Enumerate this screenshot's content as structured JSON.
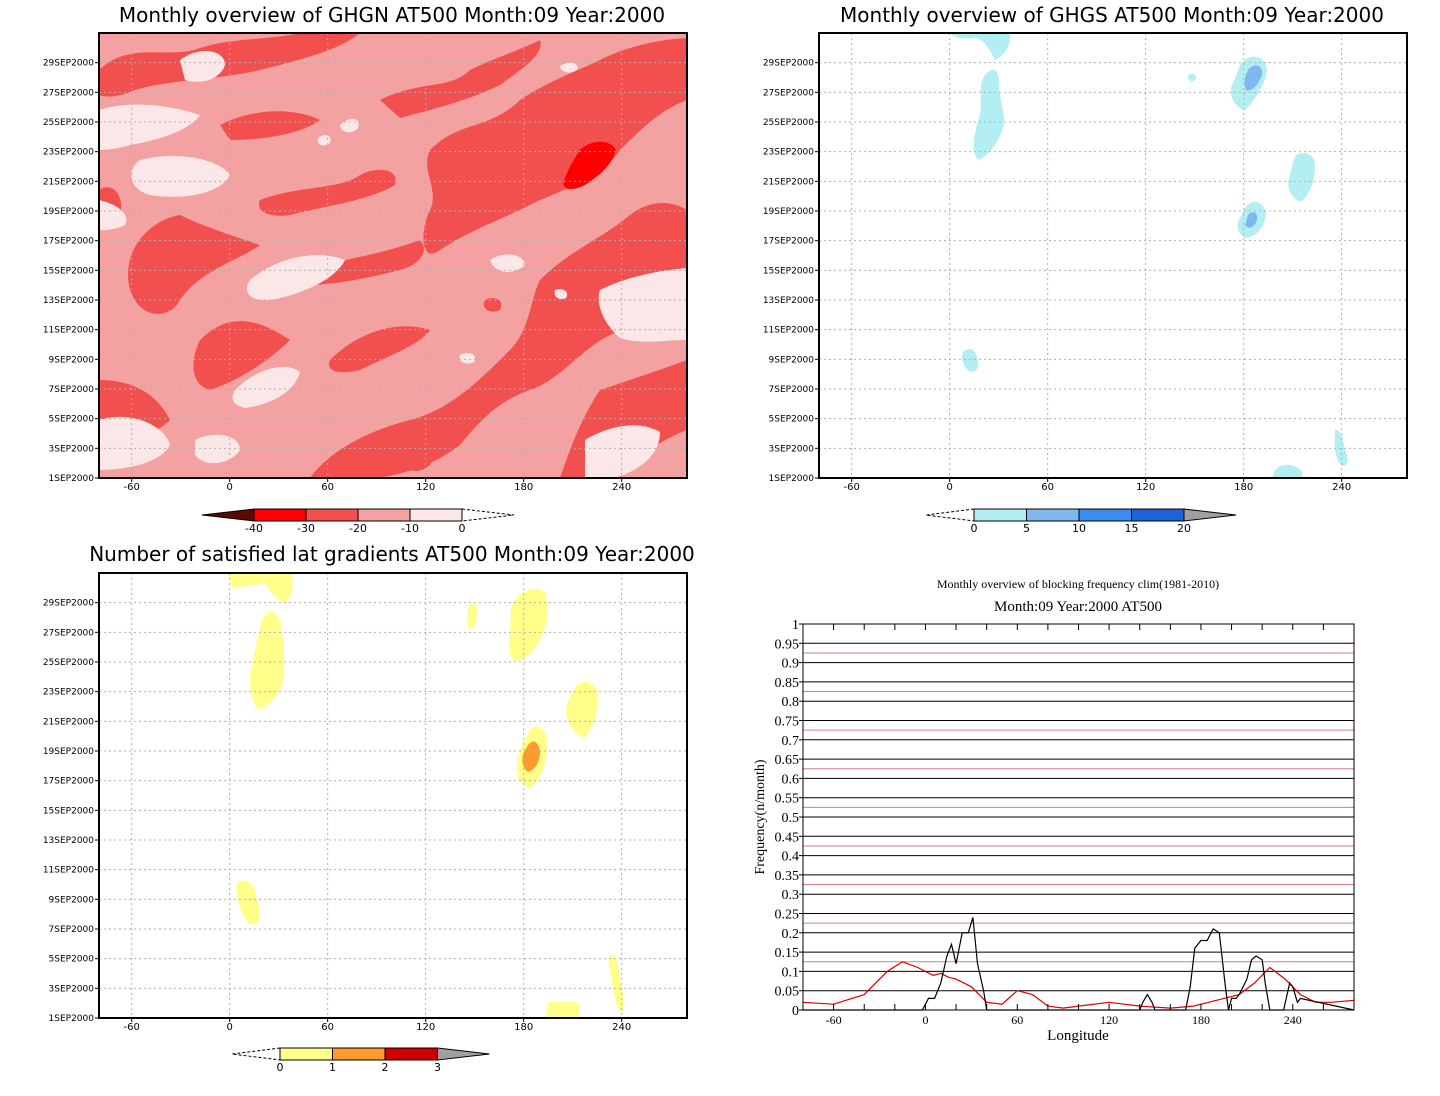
{
  "colors": {
    "ghgn_levels": [
      "#5a0a00",
      "#ff0000",
      "#f24f4f",
      "#f4a1a1",
      "#fbe7e7"
    ],
    "ghgs_levels": [
      "#b3eef2",
      "#7fb7ef",
      "#3b8ded",
      "#1f63d6",
      "#a0a0a0"
    ],
    "grad_levels": [
      "#ffff8a",
      "#ff9a2e",
      "#cc0000",
      "#a0a0a0"
    ],
    "freq_year": "#000000",
    "freq_clim": "#e00000",
    "grid_red": "#d08080"
  },
  "chart_data": [
    {
      "type": "heatmap",
      "title": "Monthly overview of GHGN AT500 Month:09 Year:2000",
      "x_ticks": [
        "-60",
        "0",
        "60",
        "120",
        "180",
        "240"
      ],
      "y_ticks": [
        "1SEP2000",
        "3SEP2000",
        "5SEP2000",
        "7SEP2000",
        "9SEP2000",
        "11SEP2000",
        "13SEP2000",
        "15SEP2000",
        "17SEP2000",
        "19SEP2000",
        "21SEP2000",
        "23SEP2000",
        "25SEP2000",
        "27SEP2000",
        "29SEP2000"
      ],
      "xlim": [
        -80,
        280
      ],
      "colorbar": [
        "-40",
        "-30",
        "-20",
        "-10",
        "0"
      ],
      "grid": true
    },
    {
      "type": "heatmap",
      "title": "Monthly overview of GHGS AT500 Month:09 Year:2000",
      "x_ticks": [
        "-60",
        "0",
        "60",
        "120",
        "180",
        "240"
      ],
      "y_ticks": [
        "1SEP2000",
        "3SEP2000",
        "5SEP2000",
        "7SEP2000",
        "9SEP2000",
        "11SEP2000",
        "13SEP2000",
        "15SEP2000",
        "17SEP2000",
        "19SEP2000",
        "21SEP2000",
        "23SEP2000",
        "25SEP2000",
        "27SEP2000",
        "29SEP2000"
      ],
      "xlim": [
        -80,
        280
      ],
      "colorbar": [
        "0",
        "5",
        "10",
        "15",
        "20"
      ],
      "grid": true
    },
    {
      "type": "heatmap",
      "title": "Number of satisfied lat gradients AT500 Month:09 Year:2000",
      "x_ticks": [
        "-60",
        "0",
        "60",
        "120",
        "180",
        "240"
      ],
      "y_ticks": [
        "1SEP2000",
        "3SEP2000",
        "5SEP2000",
        "7SEP2000",
        "9SEP2000",
        "11SEP2000",
        "13SEP2000",
        "15SEP2000",
        "17SEP2000",
        "19SEP2000",
        "21SEP2000",
        "23SEP2000",
        "25SEP2000",
        "27SEP2000",
        "29SEP2000"
      ],
      "xlim": [
        -80,
        280
      ],
      "colorbar": [
        "0",
        "1",
        "2",
        "3"
      ],
      "grid": true
    },
    {
      "type": "line",
      "title": "Monthly overview of blocking frequency clim(1981-2010)",
      "subtitle": "Month:09 Year:2000  AT500",
      "xlabel": "Longitude",
      "ylabel": "Frequency(n/month)",
      "x_ticks": [
        "-60",
        "0",
        "60",
        "120",
        "180",
        "240"
      ],
      "xlim": [
        -80,
        280
      ],
      "ylim": [
        0,
        1
      ],
      "y_ticks": [
        "0",
        "0.05",
        "0.1",
        "0.15",
        "0.2",
        "0.25",
        "0.3",
        "0.35",
        "0.4",
        "0.45",
        "0.5",
        "0.55",
        "0.6",
        "0.65",
        "0.7",
        "0.75",
        "0.8",
        "0.85",
        "0.9",
        "0.95",
        "1"
      ],
      "series": [
        {
          "x": [
            -80,
            -60,
            -40,
            -25,
            -15,
            -5,
            5,
            10,
            15,
            20,
            30,
            40,
            50,
            60,
            70,
            80,
            90,
            100,
            120,
            140,
            160,
            175,
            185,
            195,
            205,
            215,
            225,
            235,
            245,
            255,
            265,
            280
          ],
          "values": [
            0.02,
            0.015,
            0.04,
            0.1,
            0.125,
            0.11,
            0.09,
            0.095,
            0.085,
            0.08,
            0.06,
            0.02,
            0.015,
            0.05,
            0.04,
            0.01,
            0.005,
            0.01,
            0.02,
            0.01,
            0.005,
            0.01,
            0.02,
            0.03,
            0.04,
            0.07,
            0.11,
            0.08,
            0.04,
            0.02,
            0.02,
            0.025
          ]
        },
        {
          "x": [
            -80,
            -2,
            2,
            6,
            10,
            14,
            17,
            20,
            24,
            28,
            31,
            34,
            38,
            40,
            44,
            140,
            142,
            145,
            148,
            150,
            170,
            173,
            176,
            180,
            184,
            188,
            192,
            196,
            198,
            200,
            203,
            205,
            210,
            213,
            216,
            220,
            222,
            225,
            230,
            234,
            238,
            240,
            243,
            245,
            280
          ],
          "values": [
            0,
            0,
            0.03,
            0.03,
            0.07,
            0.14,
            0.17,
            0.12,
            0.2,
            0.2,
            0.24,
            0.12,
            0.05,
            0,
            0,
            0,
            0.02,
            0.04,
            0.02,
            0,
            0,
            0.06,
            0.16,
            0.18,
            0.18,
            0.21,
            0.2,
            0.06,
            0,
            0.03,
            0.03,
            0.04,
            0.08,
            0.13,
            0.14,
            0.13,
            0.07,
            0,
            0,
            0,
            0.07,
            0.06,
            0.02,
            0.03,
            0
          ]
        }
      ],
      "grid": true
    }
  ]
}
